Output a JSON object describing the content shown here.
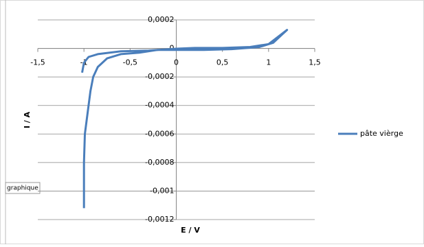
{
  "chart_data": {
    "type": "line",
    "xlabel": "I / A",
    "x_axis_title": "E / V",
    "annotations": [
      "graphique"
    ],
    "x": [
      -1.0,
      -1.0,
      -0.99,
      -0.97,
      -0.95,
      -0.93,
      -0.9,
      -0.85,
      -0.75,
      -0.6,
      -0.4,
      -0.2,
      0,
      0.3,
      0.6,
      0.9,
      1.05,
      1.15,
      1.2,
      1.1,
      1.0,
      0.8,
      0.5,
      0.2,
      0,
      -0.3,
      -0.6,
      -0.85,
      -0.95,
      -1.0,
      -1.02
    ],
    "series": [
      {
        "name": "pâte vièrge",
        "color": "#4a7ebb",
        "values": [
          -0.00112,
          -0.0008,
          -0.0006,
          -0.0005,
          -0.0004,
          -0.0003,
          -0.0002,
          -0.00013,
          -7e-05,
          -4e-05,
          -3e-05,
          -1e-05,
          -1e-05,
          -1e-05,
          -5e-06,
          1e-05,
          4e-05,
          0.0001,
          0.00013,
          8e-05,
          3e-05,
          1e-05,
          3e-06,
          3e-06,
          -2e-06,
          -1.5e-05,
          -2e-05,
          -4e-05,
          -6e-05,
          -0.0001,
          -0.00017
        ]
      }
    ],
    "xlim": [
      -1.5,
      1.5
    ],
    "ylim": [
      -0.0012,
      0.0002
    ],
    "xticks": [
      {
        "value": -1.5,
        "label": "-1,5"
      },
      -1,
      {
        "value": -0.5,
        "label": "-0,5"
      },
      0,
      {
        "value": 0.5,
        "label": "0,5"
      },
      1,
      {
        "value": 1.5,
        "label": "1,5"
      }
    ],
    "yticks": [
      {
        "value": 0.0002,
        "label": "0,0002"
      },
      0,
      {
        "value": -0.0002,
        "label": "-0,0002"
      },
      {
        "value": -0.0004,
        "label": "-0,0004"
      },
      {
        "value": -0.0006,
        "label": "-0,0006"
      },
      {
        "value": -0.0008,
        "label": "-0,0008"
      },
      {
        "value": -0.001,
        "label": "-0,001"
      },
      {
        "value": -0.0012,
        "label": "-0,0012"
      }
    ],
    "grid": true,
    "legend": "right"
  }
}
